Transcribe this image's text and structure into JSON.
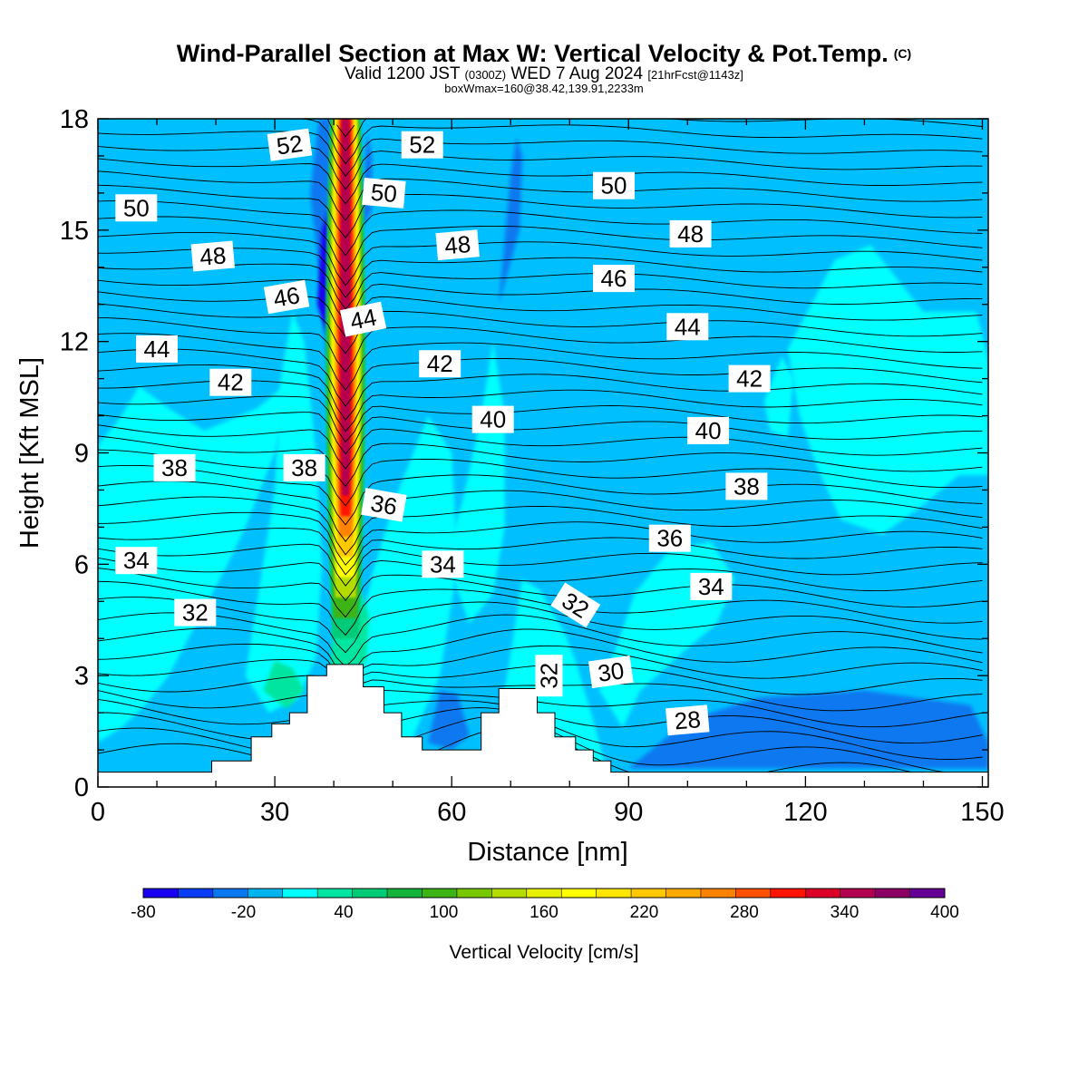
{
  "header": {
    "title": "Wind-Parallel Section at Max W: Vertical Velocity & Pot.Temp.",
    "title_corner": "(C)",
    "subtitle_a": "Valid 1200 JST",
    "subtitle_b": "(0300Z)",
    "subtitle_c": "WED 7 Aug 2024",
    "subtitle_d": "[21hrFcst@1143z]",
    "note": "boxWmax=160@38.42,139.91,2233m"
  },
  "chart_data": {
    "type": "heatmap",
    "title": "Wind-Parallel Section at Max W: Vertical Velocity & Pot.Temp.",
    "xlabel": "Distance [nm]",
    "ylabel": "Height [Kft MSL]",
    "xlim": [
      0,
      151
    ],
    "ylim": [
      0,
      18
    ],
    "xticks": [
      0,
      30,
      60,
      90,
      120,
      150
    ],
    "yticks": [
      0,
      3,
      6,
      9,
      12,
      15,
      18
    ],
    "colorbar": {
      "label": "Vertical Velocity [cm/s]",
      "min": -80,
      "max": 400,
      "step": 20,
      "tick_values": [
        -80,
        -20,
        40,
        100,
        160,
        220,
        280,
        340,
        400
      ],
      "colors": [
        "#1a00f0",
        "#0a3cf5",
        "#0a78f0",
        "#00b4f0",
        "#00ffff",
        "#00e6a0",
        "#00cc78",
        "#14b43c",
        "#3cb414",
        "#78c800",
        "#b4dc00",
        "#e6f000",
        "#ffff00",
        "#ffe600",
        "#ffc800",
        "#ffaa00",
        "#ff8200",
        "#ff5000",
        "#ff1400",
        "#dc0028",
        "#b40050",
        "#8c0064",
        "#640096"
      ]
    },
    "field_colors": {
      "background": "#00bfff",
      "weak_updraft": "#00ffff",
      "moderate_updraft": "#00e6a0",
      "downdraft": "#0a78f0",
      "strong_downdraft": "#1a00f0"
    },
    "updraft_core": {
      "x_center": 42,
      "max_value": 320,
      "from_height": 4,
      "to_height": 18
    },
    "terrain": [
      {
        "x": 0,
        "y": 0.4
      },
      {
        "x": 19.3,
        "y": 0.4
      },
      {
        "x": 19.3,
        "y": 0.7
      },
      {
        "x": 26,
        "y": 0.7
      },
      {
        "x": 26,
        "y": 1.35
      },
      {
        "x": 29.5,
        "y": 1.35
      },
      {
        "x": 29.5,
        "y": 1.7
      },
      {
        "x": 32.5,
        "y": 1.7
      },
      {
        "x": 32.5,
        "y": 2.0
      },
      {
        "x": 35.5,
        "y": 2.0
      },
      {
        "x": 35.5,
        "y": 3.0
      },
      {
        "x": 38.8,
        "y": 3.0
      },
      {
        "x": 38.8,
        "y": 3.3
      },
      {
        "x": 45,
        "y": 3.3
      },
      {
        "x": 45,
        "y": 2.7
      },
      {
        "x": 48.5,
        "y": 2.7
      },
      {
        "x": 48.5,
        "y": 2.0
      },
      {
        "x": 51.5,
        "y": 2.0
      },
      {
        "x": 51.5,
        "y": 1.35
      },
      {
        "x": 55,
        "y": 1.35
      },
      {
        "x": 55,
        "y": 1.0
      },
      {
        "x": 65,
        "y": 1.0
      },
      {
        "x": 65,
        "y": 2.0
      },
      {
        "x": 68,
        "y": 2.0
      },
      {
        "x": 68,
        "y": 2.65
      },
      {
        "x": 74.5,
        "y": 2.65
      },
      {
        "x": 74.5,
        "y": 2.0
      },
      {
        "x": 77.5,
        "y": 2.0
      },
      {
        "x": 77.5,
        "y": 1.35
      },
      {
        "x": 81,
        "y": 1.35
      },
      {
        "x": 81,
        "y": 1.0
      },
      {
        "x": 84,
        "y": 1.0
      },
      {
        "x": 84,
        "y": 0.7
      },
      {
        "x": 87,
        "y": 0.7
      },
      {
        "x": 87,
        "y": 0.4
      },
      {
        "x": 151,
        "y": 0.4
      }
    ],
    "contour_labels": [
      {
        "text": "52",
        "x": 32.5,
        "y": 17.3,
        "angle": -8
      },
      {
        "text": "52",
        "x": 55,
        "y": 17.3,
        "angle": 0
      },
      {
        "text": "50",
        "x": 6.5,
        "y": 15.6,
        "angle": 0
      },
      {
        "text": "50",
        "x": 48.5,
        "y": 16.0,
        "angle": 5
      },
      {
        "text": "50",
        "x": 87.5,
        "y": 16.2,
        "angle": 0
      },
      {
        "text": "48",
        "x": 19.5,
        "y": 14.3,
        "angle": -5
      },
      {
        "text": "48",
        "x": 61,
        "y": 14.6,
        "angle": -5
      },
      {
        "text": "48",
        "x": 100.5,
        "y": 14.9,
        "angle": 0
      },
      {
        "text": "46",
        "x": 32,
        "y": 13.2,
        "angle": -10
      },
      {
        "text": "46",
        "x": 87.5,
        "y": 13.7,
        "angle": 0
      },
      {
        "text": "44",
        "x": 45,
        "y": 12.6,
        "angle": -12
      },
      {
        "text": "44",
        "x": 10,
        "y": 11.8,
        "angle": 0
      },
      {
        "text": "44",
        "x": 100,
        "y": 12.4,
        "angle": 0
      },
      {
        "text": "42",
        "x": 22.5,
        "y": 10.9,
        "angle": 0
      },
      {
        "text": "42",
        "x": 58,
        "y": 11.4,
        "angle": 0
      },
      {
        "text": "42",
        "x": 110.5,
        "y": 11.0,
        "angle": 0
      },
      {
        "text": "40",
        "x": 67,
        "y": 9.9,
        "angle": 0
      },
      {
        "text": "40",
        "x": 103.5,
        "y": 9.6,
        "angle": 0
      },
      {
        "text": "38",
        "x": 13,
        "y": 8.6,
        "angle": 0
      },
      {
        "text": "38",
        "x": 35,
        "y": 8.6,
        "angle": 0
      },
      {
        "text": "38",
        "x": 110,
        "y": 8.1,
        "angle": 0
      },
      {
        "text": "36",
        "x": 48.5,
        "y": 7.6,
        "angle": 10
      },
      {
        "text": "36",
        "x": 97,
        "y": 6.7,
        "angle": 0
      },
      {
        "text": "34",
        "x": 6.5,
        "y": 6.1,
        "angle": 0
      },
      {
        "text": "34",
        "x": 58.5,
        "y": 6.0,
        "angle": 0
      },
      {
        "text": "34",
        "x": 104,
        "y": 5.4,
        "angle": 0
      },
      {
        "text": "32",
        "x": 16.5,
        "y": 4.7,
        "angle": 0
      },
      {
        "text": "32",
        "x": 81,
        "y": 4.9,
        "angle": 32
      },
      {
        "text": "32",
        "x": 76.5,
        "y": 3.0,
        "angle": -90
      },
      {
        "text": "30",
        "x": 87,
        "y": 3.1,
        "angle": -8
      },
      {
        "text": "28",
        "x": 100,
        "y": 1.8,
        "angle": -5
      }
    ]
  }
}
